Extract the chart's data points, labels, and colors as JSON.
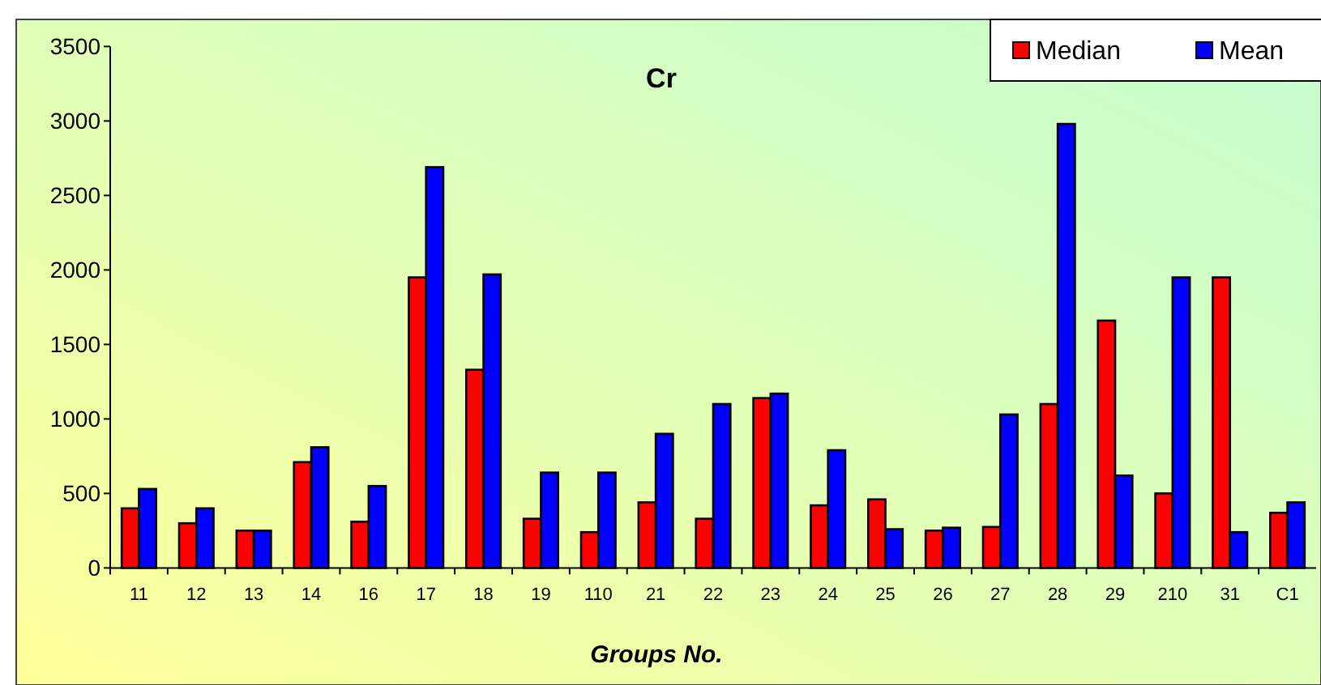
{
  "chart_data": {
    "type": "bar",
    "title": "Cr",
    "xlabel": "Groups No.",
    "categories": [
      "11",
      "12",
      "13",
      "14",
      "16",
      "17",
      "18",
      "19",
      "110",
      "21",
      "22",
      "23",
      "24",
      "25",
      "26",
      "27",
      "28",
      "29",
      "210",
      "31",
      "C1"
    ],
    "series": [
      {
        "name": "Median",
        "color": "#ff0000",
        "values": [
          400,
          300,
          250,
          710,
          310,
          1950,
          1330,
          330,
          240,
          440,
          330,
          1140,
          420,
          460,
          250,
          275,
          1100,
          1660,
          500,
          1950,
          370
        ]
      },
      {
        "name": "Mean",
        "color": "#0000ff",
        "values": [
          530,
          400,
          250,
          810,
          550,
          2690,
          1970,
          640,
          640,
          900,
          1100,
          1170,
          790,
          260,
          270,
          1030,
          2980,
          620,
          1950,
          240,
          440
        ]
      }
    ],
    "ylim": [
      0,
      3500
    ],
    "yticks": [
      0,
      500,
      1000,
      1500,
      2000,
      2500,
      3000,
      3500
    ],
    "grid": false,
    "legend": "top right"
  }
}
